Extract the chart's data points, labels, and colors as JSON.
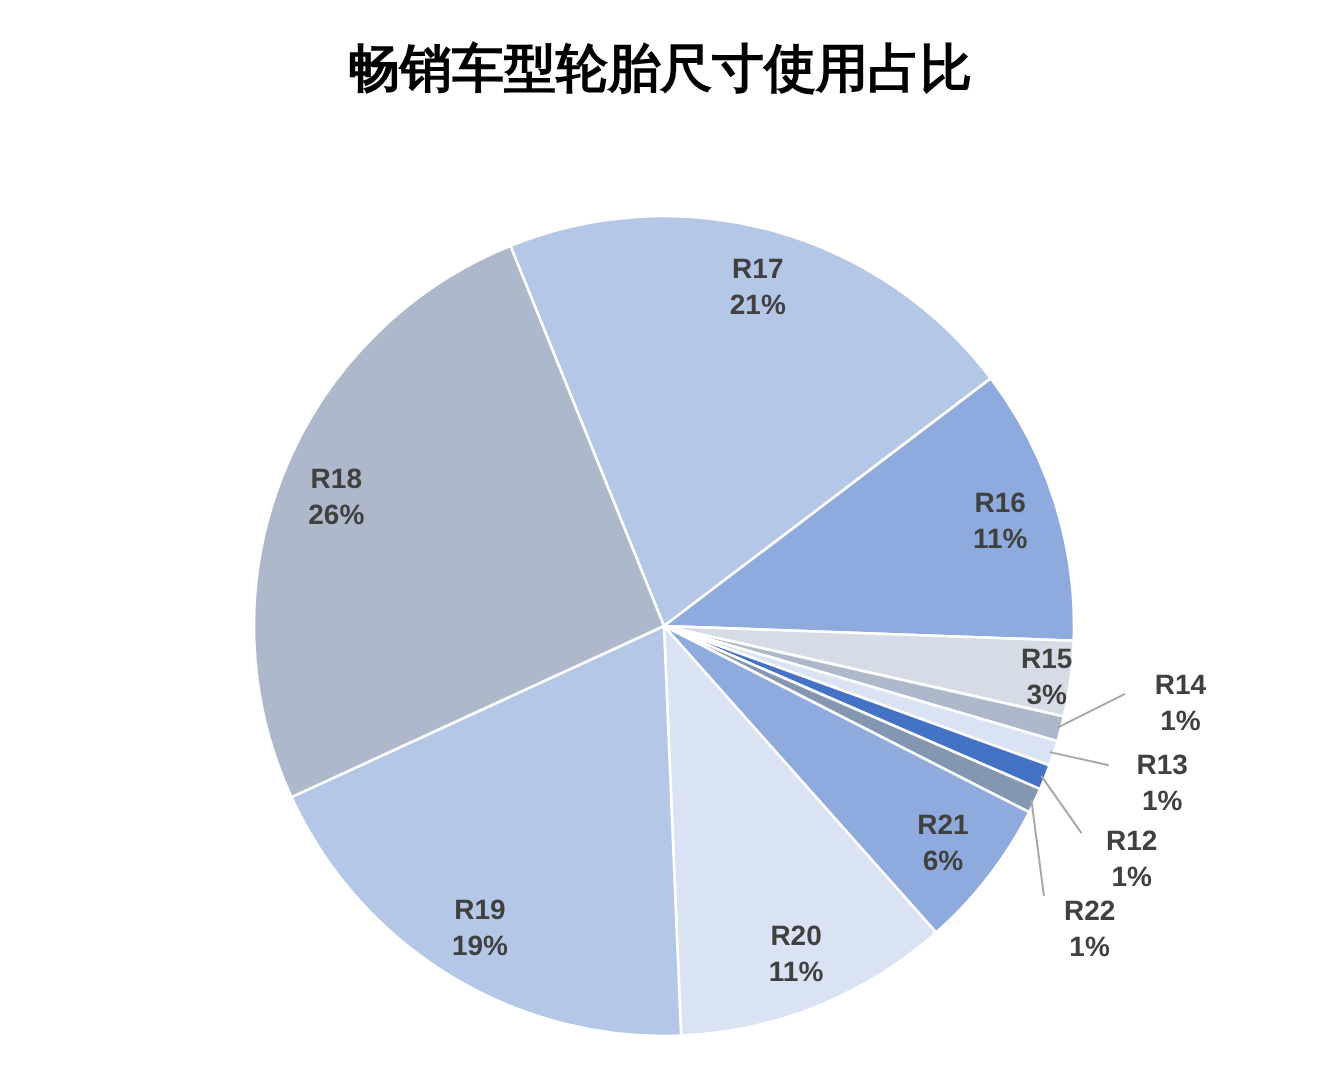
{
  "chart_data": {
    "type": "pie",
    "title": "畅销车型轮胎尺寸使用占比",
    "categories": [
      "R17",
      "R16",
      "R15",
      "R14",
      "R13",
      "R12",
      "R22",
      "R21",
      "R20",
      "R19",
      "R18"
    ],
    "values": [
      21,
      11,
      3,
      1,
      1,
      1,
      1,
      6,
      11,
      19,
      26
    ],
    "value_labels": [
      "21%",
      "11%",
      "3%",
      "1%",
      "1%",
      "1%",
      "1%",
      "6%",
      "11%",
      "19%",
      "26%"
    ],
    "colors": [
      "#b4c7e7",
      "#8faadc",
      "#d6dce5",
      "#adb9ca",
      "#dae3f3",
      "#4472c4",
      "#8497b0",
      "#8faadc",
      "#dae3f3",
      "#b4c7e7",
      "#adb9ca"
    ]
  }
}
